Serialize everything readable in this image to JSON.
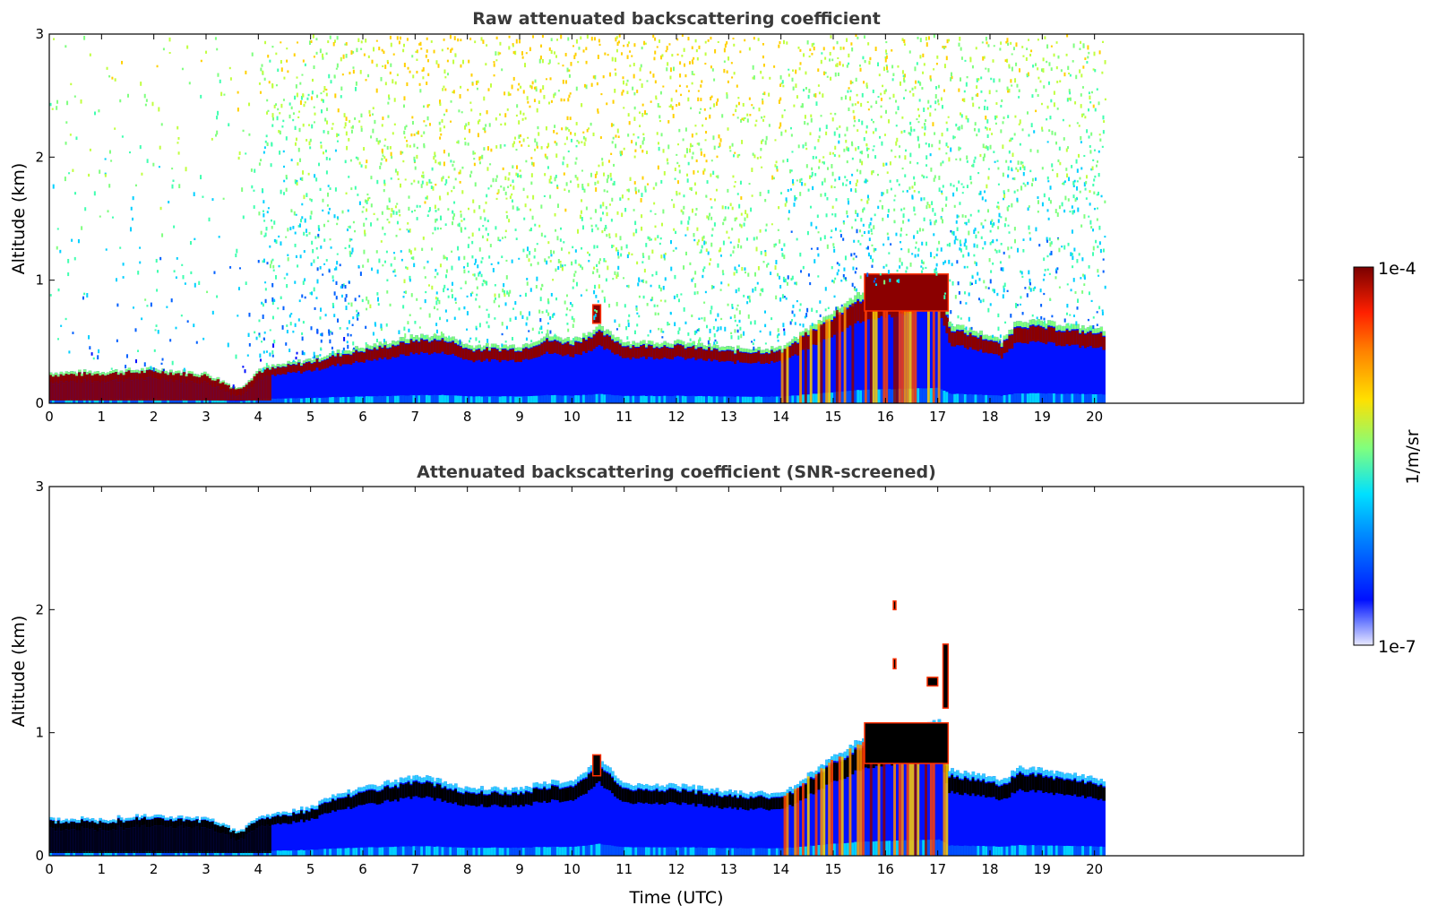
{
  "chart_data": [
    {
      "type": "heatmap",
      "title": "Raw attenuated backscattering coefficient",
      "xlabel": "",
      "ylabel": "Altitude (km)",
      "xlim": [
        0,
        24
      ],
      "ylim": [
        0,
        3
      ],
      "x_ticks": [
        "0",
        "1",
        "2",
        "3",
        "4",
        "5",
        "6",
        "7",
        "8",
        "9",
        "10",
        "11",
        "12",
        "13",
        "14",
        "15",
        "16",
        "17",
        "18",
        "19",
        "20"
      ],
      "y_ticks": [
        "0",
        "1",
        "2",
        "3"
      ],
      "data_end_time": 20.2,
      "screened": false,
      "layer_top_km": [
        [
          0,
          0.25
        ],
        [
          1,
          0.26
        ],
        [
          2,
          0.28
        ],
        [
          3,
          0.24
        ],
        [
          3.6,
          0.12
        ],
        [
          4,
          0.28
        ],
        [
          5,
          0.36
        ],
        [
          5.5,
          0.42
        ],
        [
          6,
          0.46
        ],
        [
          6.5,
          0.5
        ],
        [
          7,
          0.55
        ],
        [
          7.6,
          0.55
        ],
        [
          8,
          0.47
        ],
        [
          9,
          0.47
        ],
        [
          9.5,
          0.55
        ],
        [
          10,
          0.52
        ],
        [
          10.5,
          0.62
        ],
        [
          11,
          0.5
        ],
        [
          12,
          0.5
        ],
        [
          13,
          0.45
        ],
        [
          14,
          0.45
        ],
        [
          14.8,
          0.7
        ],
        [
          15.5,
          0.9
        ],
        [
          16,
          0.95
        ],
        [
          16.5,
          1.0
        ],
        [
          17,
          1.05
        ],
        [
          17.2,
          0.65
        ],
        [
          18,
          0.55
        ],
        [
          18.2,
          0.5
        ],
        [
          18.5,
          0.68
        ],
        [
          19,
          0.66
        ],
        [
          20.2,
          0.6
        ]
      ],
      "clouds_km": [
        {
          "t": [
            10.4,
            10.55
          ],
          "z": [
            0.65,
            0.8
          ]
        },
        {
          "t": [
            15.6,
            17.2
          ],
          "z": [
            0.75,
            1.05
          ]
        }
      ]
    },
    {
      "type": "heatmap",
      "title": "Attenuated backscattering coefficient (SNR-screened)",
      "xlabel": "Time (UTC)",
      "ylabel": "Altitude (km)",
      "xlim": [
        0,
        24
      ],
      "ylim": [
        0,
        3
      ],
      "x_ticks": [
        "0",
        "1",
        "2",
        "3",
        "4",
        "5",
        "6",
        "7",
        "8",
        "9",
        "10",
        "11",
        "12",
        "13",
        "14",
        "15",
        "16",
        "17",
        "18",
        "19",
        "20"
      ],
      "y_ticks": [
        "0",
        "1",
        "2",
        "3"
      ],
      "data_end_time": 20.2,
      "screened": true,
      "layer_top_km": [
        [
          0,
          0.3
        ],
        [
          1,
          0.3
        ],
        [
          2,
          0.33
        ],
        [
          3,
          0.3
        ],
        [
          3.6,
          0.2
        ],
        [
          4,
          0.32
        ],
        [
          5,
          0.4
        ],
        [
          5.5,
          0.5
        ],
        [
          6,
          0.55
        ],
        [
          6.5,
          0.6
        ],
        [
          7,
          0.65
        ],
        [
          7.6,
          0.6
        ],
        [
          8,
          0.55
        ],
        [
          9,
          0.55
        ],
        [
          9.5,
          0.6
        ],
        [
          10,
          0.6
        ],
        [
          10.5,
          0.8
        ],
        [
          11,
          0.58
        ],
        [
          12,
          0.58
        ],
        [
          13,
          0.52
        ],
        [
          14,
          0.5
        ],
        [
          14.8,
          0.75
        ],
        [
          15.5,
          0.95
        ],
        [
          16,
          1.0
        ],
        [
          16.5,
          1.05
        ],
        [
          17,
          1.1
        ],
        [
          17.2,
          0.7
        ],
        [
          18,
          0.65
        ],
        [
          18.2,
          0.6
        ],
        [
          18.5,
          0.72
        ],
        [
          19,
          0.7
        ],
        [
          20.2,
          0.62
        ]
      ],
      "clouds_km": [
        {
          "t": [
            10.4,
            10.55
          ],
          "z": [
            0.65,
            0.82
          ]
        },
        {
          "t": [
            15.6,
            17.2
          ],
          "z": [
            0.75,
            1.08
          ]
        },
        {
          "t": [
            16.15,
            16.2
          ],
          "z": [
            2.0,
            2.07
          ]
        },
        {
          "t": [
            16.15,
            16.2
          ],
          "z": [
            1.52,
            1.6
          ]
        },
        {
          "t": [
            16.8,
            17.0
          ],
          "z": [
            1.38,
            1.45
          ]
        },
        {
          "t": [
            17.1,
            17.2
          ],
          "z": [
            1.2,
            1.72
          ]
        }
      ]
    }
  ],
  "colorbar": {
    "max_label": "1e-4",
    "min_label": "1e-7",
    "unit_label": "1/m/sr"
  },
  "colors": {
    "low": "#0010ff",
    "mid_low": "#00d0ff",
    "mid": "#7fff7f",
    "mid_high": "#ffd000",
    "high": "#ff3000",
    "max": "#8b0000",
    "saturated": "#000000"
  }
}
